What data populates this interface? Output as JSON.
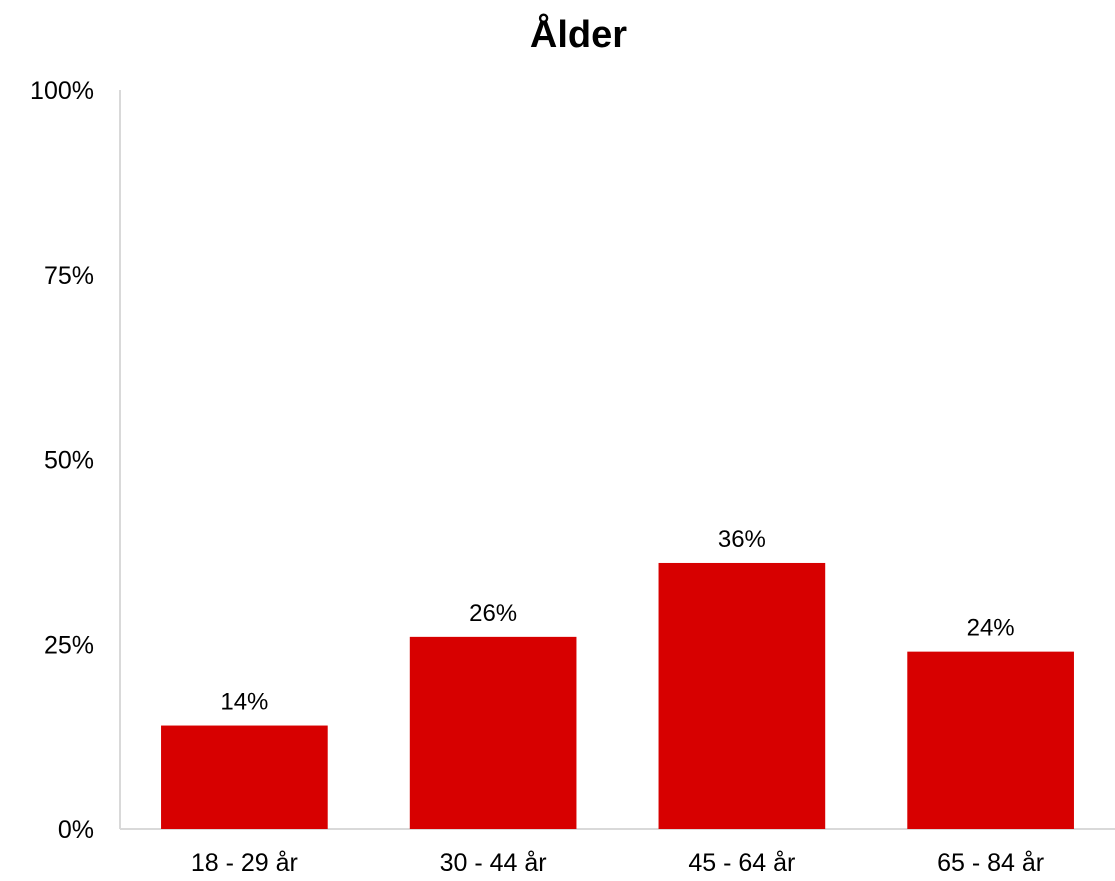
{
  "chart_data": {
    "type": "bar",
    "title": "Ålder",
    "xlabel": "",
    "ylabel": "",
    "categories": [
      "18 - 29 år",
      "30 - 44 år",
      "45 - 64 år",
      "65 - 84 år"
    ],
    "values": [
      14,
      26,
      36,
      24
    ],
    "value_labels": [
      "14%",
      "26%",
      "36%",
      "24%"
    ],
    "ylim": [
      0,
      100
    ],
    "yticks": [
      0,
      25,
      50,
      75,
      100
    ],
    "ytick_labels": [
      "0%",
      "25%",
      "50%",
      "75%",
      "100%"
    ],
    "grid": false,
    "legend": "none",
    "bar_color": "#d70000",
    "axis_color": "#d9d9d9"
  }
}
